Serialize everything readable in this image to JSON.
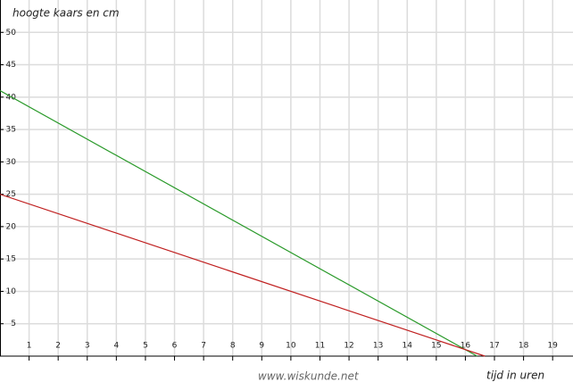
{
  "chart_data": {
    "type": "line",
    "y_label": "hoogte kaars en cm",
    "x_label": "tijd in uren",
    "watermark": "www.wiskunde.net",
    "xlim": [
      0,
      19.7
    ],
    "ylim": [
      0,
      55
    ],
    "xticks": [
      1,
      2,
      3,
      4,
      5,
      6,
      7,
      8,
      9,
      10,
      11,
      12,
      13,
      14,
      15,
      16,
      17,
      18,
      19
    ],
    "yticks": [
      5,
      10,
      15,
      20,
      25,
      30,
      35,
      40,
      45,
      50
    ],
    "grid": true,
    "series": [
      {
        "color": "#2a9a2a",
        "x": [
          0,
          16.4
        ],
        "values": [
          41,
          0
        ]
      },
      {
        "color": "#c02020",
        "x": [
          0,
          16.67
        ],
        "values": [
          25,
          0
        ]
      }
    ]
  }
}
